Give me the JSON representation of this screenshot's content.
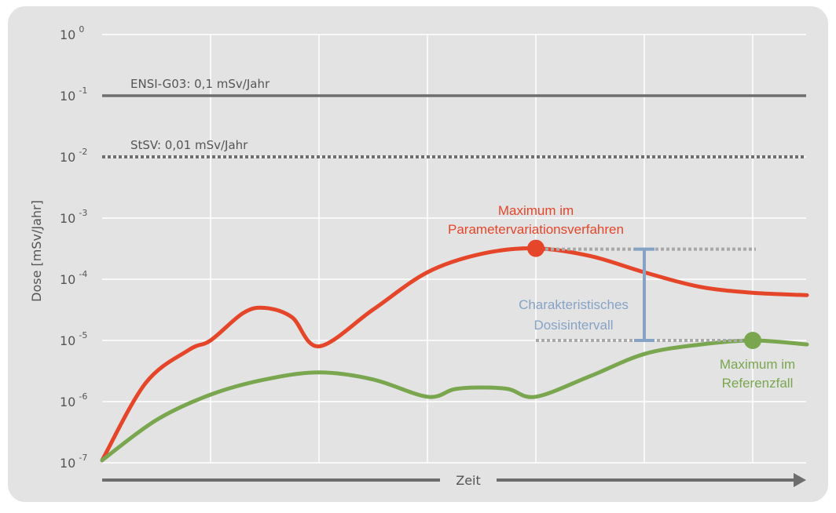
{
  "chart_data": {
    "type": "line",
    "title": "",
    "ylabel": "Dose [mSv/Jahr]",
    "xlabel": "Zeit",
    "y_scale": "log",
    "ylim": [
      1e-07,
      1
    ],
    "grid": true,
    "y_ticks": [
      {
        "base": "10",
        "exp": "0"
      },
      {
        "base": "10",
        "exp": "-1"
      },
      {
        "base": "10",
        "exp": "-2"
      },
      {
        "base": "10",
        "exp": "-3"
      },
      {
        "base": "10",
        "exp": "-4"
      },
      {
        "base": "10",
        "exp": "-5"
      },
      {
        "base": "10",
        "exp": "-6"
      },
      {
        "base": "10",
        "exp": "-7"
      }
    ],
    "reference_lines": [
      {
        "label": "ENSI-G03: 0,1 mSv/Jahr",
        "value": 0.1,
        "style": "solid",
        "color": "#6e6e6e"
      },
      {
        "label": "StSV: 0,01 mSv/Jahr",
        "value": 0.01,
        "style": "dotted",
        "color": "#6e6e6e"
      }
    ],
    "series": [
      {
        "color": "#e5462a",
        "points": [
          [
            0.0,
            1.1e-07
          ],
          [
            0.4,
            2e-06
          ],
          [
            0.8,
            7e-06
          ],
          [
            1.0,
            1e-05
          ],
          [
            1.3,
            2.8e-05
          ],
          [
            1.5,
            3.4e-05
          ],
          [
            1.75,
            2.4e-05
          ],
          [
            2.0,
            8e-06
          ],
          [
            2.5,
            3.2e-05
          ],
          [
            3.0,
            0.00013
          ],
          [
            3.5,
            0.00026
          ],
          [
            4.0,
            0.00032
          ],
          [
            4.5,
            0.00024
          ],
          [
            5.0,
            0.00013
          ],
          [
            5.5,
            7.6e-05
          ],
          [
            6.0,
            6e-05
          ],
          [
            6.5,
            5.5e-05
          ]
        ]
      },
      {
        "color": "#7aa650",
        "points": [
          [
            0.0,
            1.1e-07
          ],
          [
            0.5,
            5e-07
          ],
          [
            1.0,
            1.3e-06
          ],
          [
            1.5,
            2.3e-06
          ],
          [
            2.0,
            3e-06
          ],
          [
            2.5,
            2.3e-06
          ],
          [
            3.0,
            1.2e-06
          ],
          [
            3.25,
            1.6e-06
          ],
          [
            3.5,
            1.7e-06
          ],
          [
            3.75,
            1.6e-06
          ],
          [
            4.0,
            1.2e-06
          ],
          [
            4.5,
            2.6e-06
          ],
          [
            5.0,
            6e-06
          ],
          [
            5.5,
            8.5e-06
          ],
          [
            6.0,
            1e-05
          ],
          [
            6.5,
            8.6e-06
          ]
        ]
      }
    ],
    "annotations": {
      "max_param_label": [
        "Maximum im",
        "Parametervariationsverfahren"
      ],
      "max_param_point": {
        "x": 4.0,
        "y": 0.00032
      },
      "max_ref_label": [
        "Maximum im",
        "Referenzfall"
      ],
      "max_ref_point": {
        "x": 6.0,
        "y": 1e-05
      },
      "interval_label": [
        "Charakteristisches",
        "Dosisintervall"
      ],
      "interval_x": 5.0,
      "interval_range": [
        1e-05,
        0.00032
      ]
    },
    "colors": {
      "red": "#e5462a",
      "green": "#7aa650",
      "blue": "#86a3c6",
      "grey": "#6e6e6e",
      "panel": "#e3e3e3"
    }
  }
}
